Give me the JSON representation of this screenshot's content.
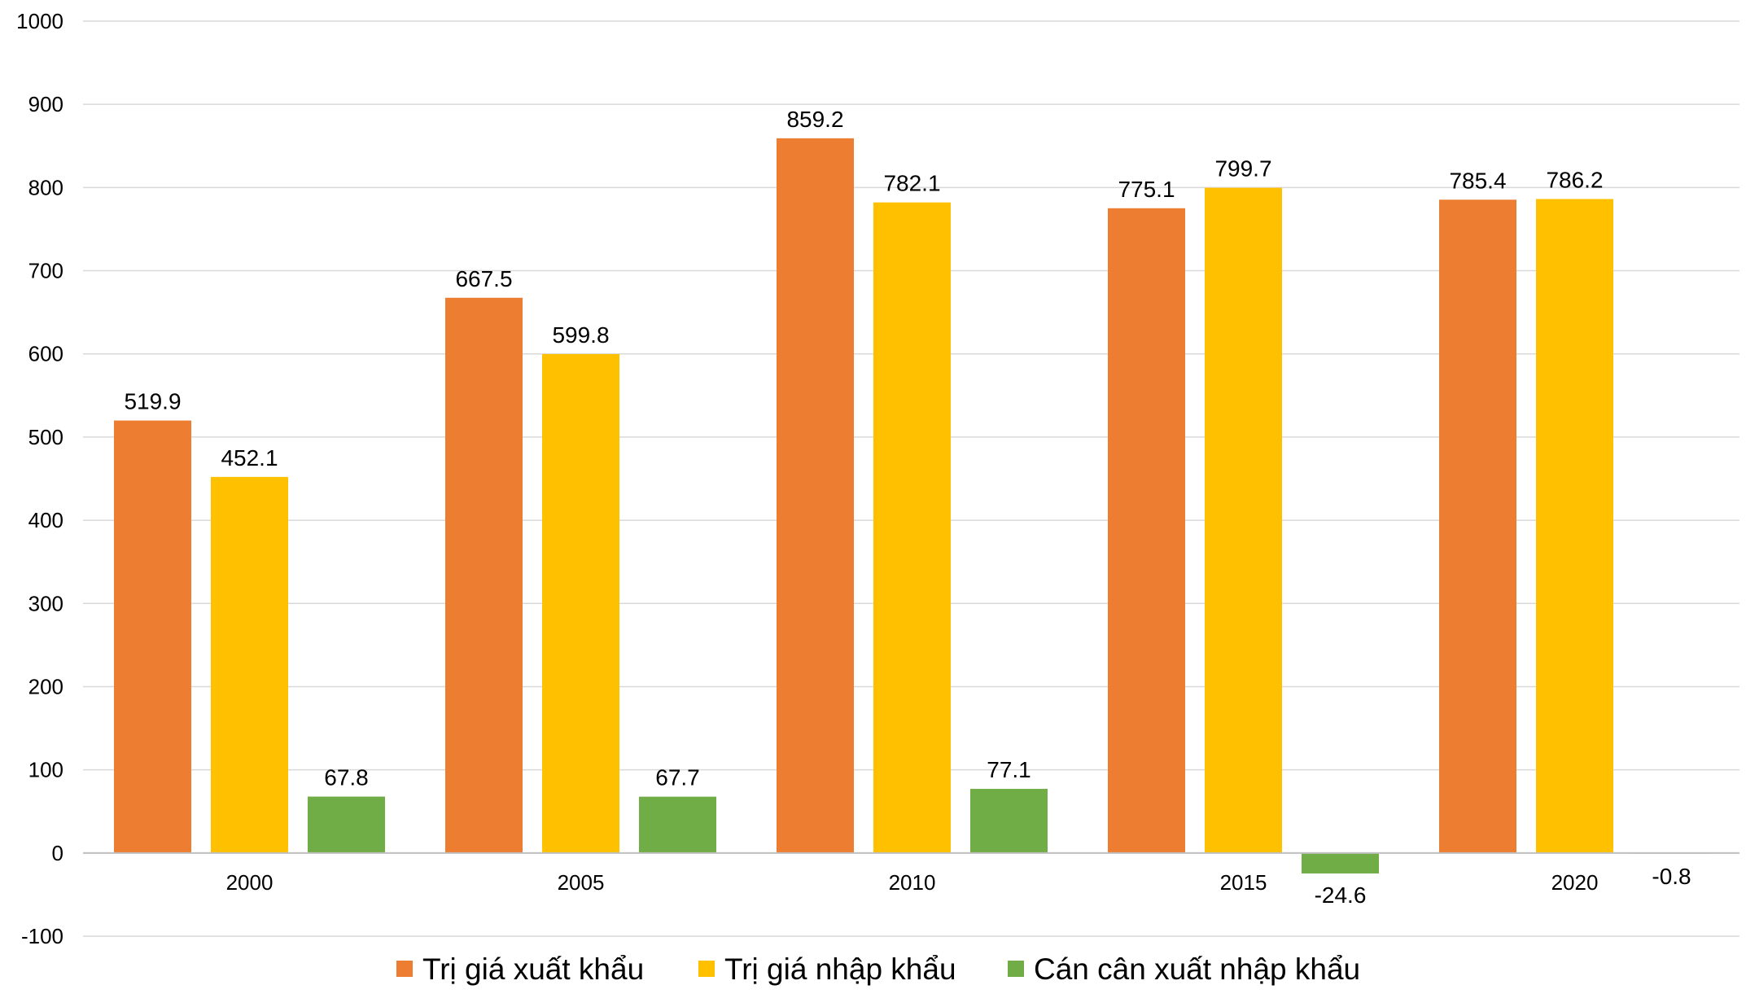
{
  "chart_data": {
    "type": "bar",
    "categories": [
      "2000",
      "2005",
      "2010",
      "2015",
      "2020"
    ],
    "series": [
      {
        "name": "Trị giá xuất khẩu",
        "color": "#ED7D31",
        "values": [
          519.9,
          667.5,
          859.2,
          775.1,
          785.4
        ]
      },
      {
        "name": "Trị giá nhập khẩu",
        "color": "#FFC000",
        "values": [
          452.1,
          599.8,
          782.1,
          799.7,
          786.2
        ]
      },
      {
        "name": "Cán cân xuất nhập khẩu",
        "color": "#70AD47",
        "values": [
          67.8,
          67.7,
          77.1,
          -24.6,
          -0.8
        ]
      }
    ],
    "data_labels": [
      [
        "519.9",
        "667.5",
        "859.2",
        "775.1",
        "785.4"
      ],
      [
        "452.1",
        "599.8",
        "782.1",
        "799.7",
        "786.2"
      ],
      [
        "67.8",
        "67.7",
        "77.1",
        "-24.6",
        "-0.8"
      ]
    ],
    "y_ticks": [
      "-100",
      "0",
      "100",
      "200",
      "300",
      "400",
      "500",
      "600",
      "700",
      "800",
      "900",
      "1000"
    ],
    "ylim": [
      -100,
      1000
    ],
    "grid": true,
    "legend_position": "bottom",
    "title": "",
    "xlabel": "",
    "ylabel": ""
  }
}
